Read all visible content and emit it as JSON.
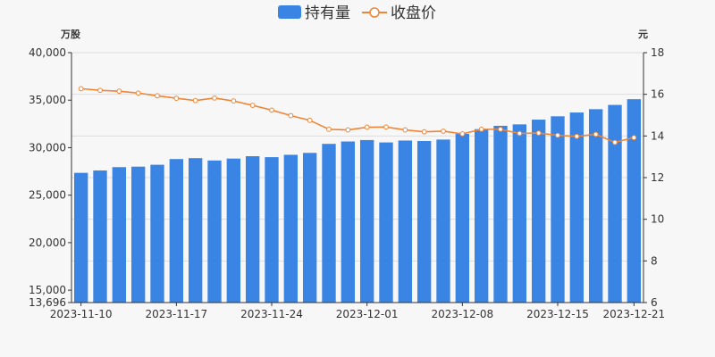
{
  "chart_data": {
    "type": "bar",
    "legend": {
      "position": "top-center",
      "items": [
        {
          "label": "持有量",
          "kind": "bar"
        },
        {
          "label": "收盘价",
          "kind": "line"
        }
      ]
    },
    "left_axis_unit": "万股",
    "right_axis_unit": "元",
    "left_axis": {
      "ylim": [
        13696,
        40000
      ],
      "ticks": [
        13696,
        15000,
        20000,
        25000,
        30000,
        35000,
        40000
      ],
      "tick_labels": [
        "13,696",
        "15,000",
        "20,000",
        "25,000",
        "30,000",
        "35,000",
        "40,000"
      ]
    },
    "right_axis": {
      "ylim": [
        6,
        18
      ],
      "ticks": [
        6,
        8,
        10,
        12,
        14,
        16,
        18
      ],
      "tick_labels": [
        "6",
        "8",
        "10",
        "12",
        "14",
        "16",
        "18"
      ]
    },
    "x_tick_labels": [
      {
        "label": "2023-11-10",
        "index": 0
      },
      {
        "label": "2023-11-17",
        "index": 5
      },
      {
        "label": "2023-11-24",
        "index": 10
      },
      {
        "label": "2023-12-01",
        "index": 15
      },
      {
        "label": "2023-12-08",
        "index": 20
      },
      {
        "label": "2023-12-15",
        "index": 25
      },
      {
        "label": "2023-12-21",
        "index": 29
      }
    ],
    "grid": true,
    "colors": {
      "bar": "#3a84e3",
      "line": "#ef8535",
      "axis": "#333333",
      "grid": "#dddddd"
    },
    "series": [
      {
        "name": "持有量",
        "type": "bar",
        "axis": "left",
        "values": [
          27350,
          27600,
          27950,
          28000,
          28200,
          28800,
          28900,
          28650,
          28850,
          29100,
          29000,
          29250,
          29450,
          30400,
          30650,
          30800,
          30550,
          30750,
          30700,
          30850,
          31450,
          31950,
          32300,
          32450,
          32950,
          33300,
          33700,
          34050,
          34500,
          35100
        ]
      },
      {
        "name": "收盘价",
        "type": "line",
        "axis": "right",
        "values": [
          16.27,
          16.19,
          16.15,
          16.06,
          15.93,
          15.81,
          15.7,
          15.82,
          15.68,
          15.47,
          15.24,
          14.98,
          14.75,
          14.32,
          14.29,
          14.42,
          14.43,
          14.29,
          14.2,
          14.23,
          14.1,
          14.32,
          14.32,
          14.12,
          14.14,
          14.03,
          13.98,
          14.08,
          13.69,
          13.92
        ]
      }
    ]
  }
}
